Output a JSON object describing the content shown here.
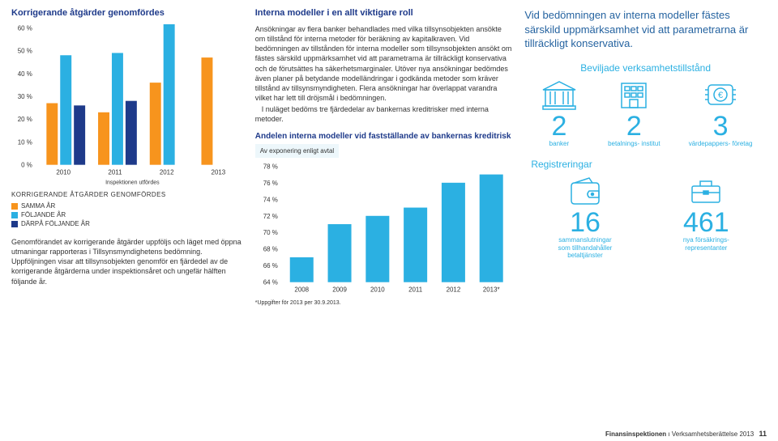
{
  "left": {
    "title": "Korrigerande åtgärder genomfördes",
    "chart": {
      "y_ticks": [
        "0 %",
        "10 %",
        "20 %",
        "30 %",
        "40 %",
        "50 %",
        "60 %"
      ],
      "ymax": 60,
      "x_ticks": [
        "2010",
        "2011",
        "2012",
        "2013"
      ],
      "x_sub": "Inspektionen utfördes",
      "data": {
        "2010": {
          "orange": 27,
          "blue": 48,
          "navy": 26
        },
        "2011": {
          "orange": 23,
          "blue": 49,
          "navy": 28
        },
        "2012": {
          "orange": 36,
          "blue": 63,
          "navy": 0
        },
        "2013": {
          "orange": 47,
          "blue": 0,
          "navy": 0
        }
      },
      "colors": {
        "orange": "#f7941d",
        "blue": "#2bb0e2",
        "navy": "#1e3a8a"
      }
    },
    "legend_header": "KORRIGERANDE ÅTGÄRDER GENOMFÖRDES",
    "legend": [
      {
        "label": "SAMMA ÅR",
        "color": "#f7941d"
      },
      {
        "label": "FÖLJANDE ÅR",
        "color": "#2bb0e2"
      },
      {
        "label": "DÄRPÅ FÖLJANDE ÅR",
        "color": "#1e3a8a"
      }
    ],
    "para": "Genomförandet av korrigerande åtgärder uppföljs och läget med öppna utmaningar rapporteras i Tillsynsmyndighetens bedömning. Uppföljningen visar att tillsynsobjekten genomför en fjärdedel av de korrigerande åtgärderna under inspektionsåret och ungefär hälften följande år."
  },
  "mid": {
    "title": "Interna modeller i en allt viktigare roll",
    "body": "Ansökningar av flera banker behandlades med vilka tillsynsobjekten ansökte om tillstånd för interna metoder för beräkning av kapitalkraven. Vid bedömningen av tillstånden för interna modeller som tillsynsobjekten ansökt om fästes särskild uppmärksamhet vid att parametrarna är tillräckligt konservativa och de förutsättes ha säkerhetsmarginaler. Utöver nya ansökningar bedömdes även planer på betydande modelländringar i godkända metoder som kräver tillstånd av tillsynsmyndigheten. Flera ansökningar har överlappat varandra vilket har lett till dröjsmål i bedömningen.",
    "body2": "I nuläget bedöms tre fjärdedelar av bankernas kreditrisker med interna metoder.",
    "chart_title": "Andelen interna modeller vid fastställande av bankernas kreditrisk",
    "chart_sub": "Av exponering enligt avtal",
    "chart": {
      "y_ticks": [
        "64 %",
        "66 %",
        "68 %",
        "70 %",
        "72 %",
        "74 %",
        "76 %",
        "78 %"
      ],
      "ymin": 64,
      "ymax": 78,
      "x_ticks": [
        "2008",
        "2009",
        "2010",
        "2011",
        "2012",
        "2013*"
      ],
      "values": [
        67,
        71,
        72,
        73,
        76,
        77
      ],
      "color": "#2bb0e2"
    },
    "note": "*Uppgifter för 2013 per 30.9.2013."
  },
  "right": {
    "highlight": "Vid bedömningen av interna modeller fästes särskild uppmärksamhet vid att parametrarna är tillräckligt konservativa.",
    "section1_title": "Beviljade verksamhetstillstånd",
    "section1_stats": [
      {
        "num": "2",
        "label": "banker"
      },
      {
        "num": "2",
        "label": "betalnings-\ninstitut"
      },
      {
        "num": "3",
        "label": "värdepappers-\nföretag"
      }
    ],
    "section2_title": "Registreringar",
    "section2_stats": [
      {
        "num": "16",
        "label": "sammanslutningar som tillhandahåller betaltjänster"
      },
      {
        "num": "461",
        "label": "nya försäkrings-\nrepresentanter"
      }
    ]
  },
  "footer": {
    "brand": "Finansinspektionen",
    "doc": "Verksamhetsberättelse 2013",
    "page": "11"
  }
}
